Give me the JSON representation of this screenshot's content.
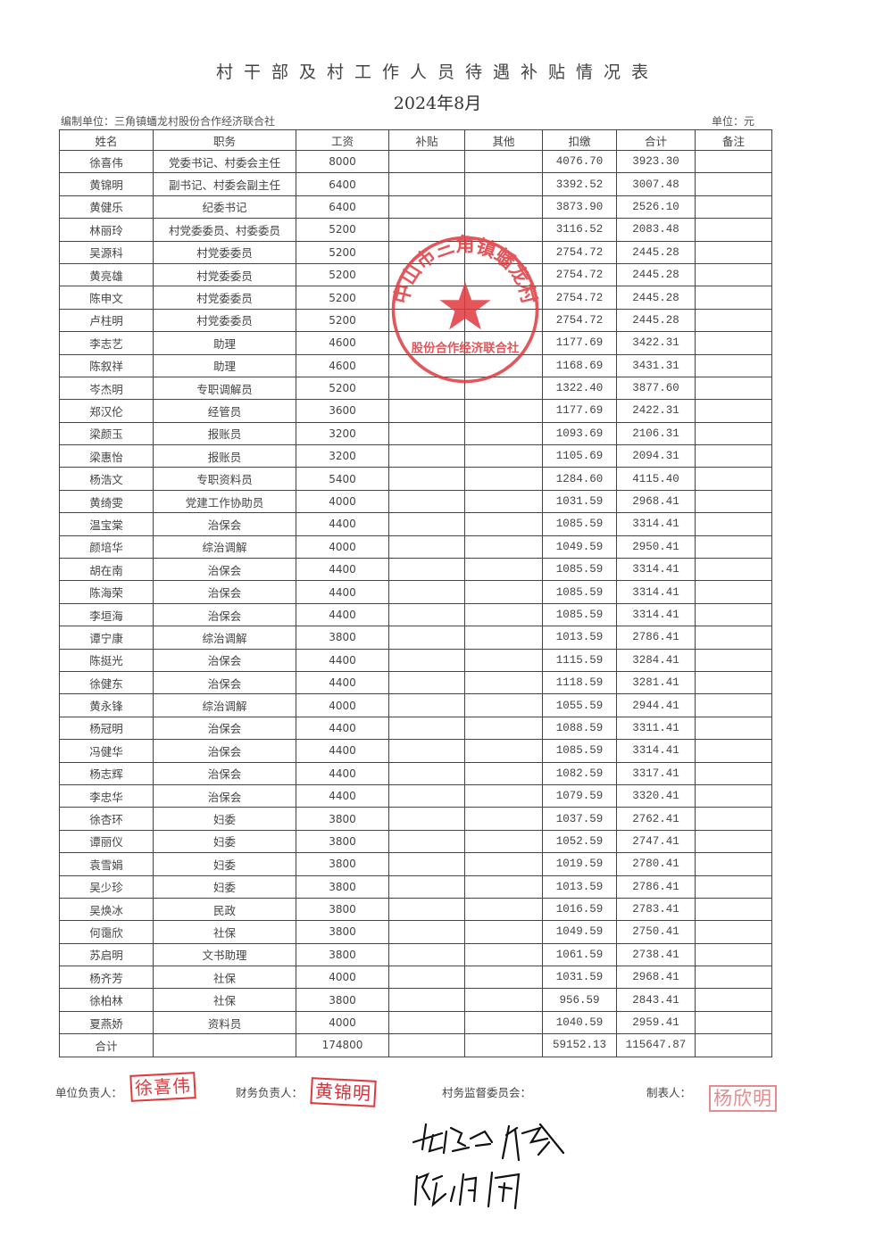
{
  "header": {
    "title": "村干部及村工作人员待遇补贴情况表",
    "period": "2024年8月",
    "org_label": "编制单位：三角镇蟠龙村股份合作经济联合社",
    "unit_label": "单位：元"
  },
  "table": {
    "columns": [
      "姓名",
      "职务",
      "工资",
      "补贴",
      "其他",
      "扣缴",
      "合计",
      "备注"
    ],
    "rows": [
      [
        "徐喜伟",
        "党委书记、村委会主任",
        "8000",
        "",
        "",
        "4076.70",
        "3923.30",
        ""
      ],
      [
        "黄锦明",
        "副书记、村委会副主任",
        "6400",
        "",
        "",
        "3392.52",
        "3007.48",
        ""
      ],
      [
        "黄健乐",
        "纪委书记",
        "6400",
        "",
        "",
        "3873.90",
        "2526.10",
        ""
      ],
      [
        "林丽玲",
        "村党委委员、村委委员",
        "5200",
        "",
        "",
        "3116.52",
        "2083.48",
        ""
      ],
      [
        "吴源科",
        "村党委委员",
        "5200",
        "",
        "",
        "2754.72",
        "2445.28",
        ""
      ],
      [
        "黄亮雄",
        "村党委委员",
        "5200",
        "",
        "",
        "2754.72",
        "2445.28",
        ""
      ],
      [
        "陈申文",
        "村党委委员",
        "5200",
        "",
        "",
        "2754.72",
        "2445.28",
        ""
      ],
      [
        "卢柱明",
        "村党委委员",
        "5200",
        "",
        "",
        "2754.72",
        "2445.28",
        ""
      ],
      [
        "李志艺",
        "助理",
        "4600",
        "",
        "",
        "1177.69",
        "3422.31",
        ""
      ],
      [
        "陈叙祥",
        "助理",
        "4600",
        "",
        "",
        "1168.69",
        "3431.31",
        ""
      ],
      [
        "岑杰明",
        "专职调解员",
        "5200",
        "",
        "",
        "1322.40",
        "3877.60",
        ""
      ],
      [
        "郑汉伦",
        "经管员",
        "3600",
        "",
        "",
        "1177.69",
        "2422.31",
        ""
      ],
      [
        "梁颜玉",
        "报账员",
        "3200",
        "",
        "",
        "1093.69",
        "2106.31",
        ""
      ],
      [
        "梁惠怡",
        "报账员",
        "3200",
        "",
        "",
        "1105.69",
        "2094.31",
        ""
      ],
      [
        "杨浩文",
        "专职资料员",
        "5400",
        "",
        "",
        "1284.60",
        "4115.40",
        ""
      ],
      [
        "黄绮雯",
        "党建工作协助员",
        "4000",
        "",
        "",
        "1031.59",
        "2968.41",
        ""
      ],
      [
        "温宝棠",
        "治保会",
        "4400",
        "",
        "",
        "1085.59",
        "3314.41",
        ""
      ],
      [
        "颜培华",
        "综治调解",
        "4000",
        "",
        "",
        "1049.59",
        "2950.41",
        ""
      ],
      [
        "胡在南",
        "治保会",
        "4400",
        "",
        "",
        "1085.59",
        "3314.41",
        ""
      ],
      [
        "陈海荣",
        "治保会",
        "4400",
        "",
        "",
        "1085.59",
        "3314.41",
        ""
      ],
      [
        "李垣海",
        "治保会",
        "4400",
        "",
        "",
        "1085.59",
        "3314.41",
        ""
      ],
      [
        "谭宁康",
        "综治调解",
        "3800",
        "",
        "",
        "1013.59",
        "2786.41",
        ""
      ],
      [
        "陈挺光",
        "治保会",
        "4400",
        "",
        "",
        "1115.59",
        "3284.41",
        ""
      ],
      [
        "徐健东",
        "治保会",
        "4400",
        "",
        "",
        "1118.59",
        "3281.41",
        ""
      ],
      [
        "黄永锋",
        "综治调解",
        "4000",
        "",
        "",
        "1055.59",
        "2944.41",
        ""
      ],
      [
        "杨冠明",
        "治保会",
        "4400",
        "",
        "",
        "1088.59",
        "3311.41",
        ""
      ],
      [
        "冯健华",
        "治保会",
        "4400",
        "",
        "",
        "1085.59",
        "3314.41",
        ""
      ],
      [
        "杨志辉",
        "治保会",
        "4400",
        "",
        "",
        "1082.59",
        "3317.41",
        ""
      ],
      [
        "李忠华",
        "治保会",
        "4400",
        "",
        "",
        "1079.59",
        "3320.41",
        ""
      ],
      [
        "徐杏环",
        "妇委",
        "3800",
        "",
        "",
        "1037.59",
        "2762.41",
        ""
      ],
      [
        "谭丽仪",
        "妇委",
        "3800",
        "",
        "",
        "1052.59",
        "2747.41",
        ""
      ],
      [
        "袁雪娟",
        "妇委",
        "3800",
        "",
        "",
        "1019.59",
        "2780.41",
        ""
      ],
      [
        "吴少珍",
        "妇委",
        "3800",
        "",
        "",
        "1013.59",
        "2786.41",
        ""
      ],
      [
        "吴焕冰",
        "民政",
        "3800",
        "",
        "",
        "1016.59",
        "2783.41",
        ""
      ],
      [
        "何霭欣",
        "社保",
        "3800",
        "",
        "",
        "1049.59",
        "2750.41",
        ""
      ],
      [
        "苏启明",
        "文书助理",
        "3800",
        "",
        "",
        "1061.59",
        "2738.41",
        ""
      ],
      [
        "杨齐芳",
        "社保",
        "4000",
        "",
        "",
        "1031.59",
        "2968.41",
        ""
      ],
      [
        "徐柏林",
        "社保",
        "3800",
        "",
        "",
        "956.59",
        "2843.41",
        ""
      ],
      [
        "夏燕娇",
        "资料员",
        "4000",
        "",
        "",
        "1040.59",
        "2959.41",
        ""
      ]
    ],
    "total": [
      "合计",
      "",
      "174800",
      "",
      "",
      "59152.13",
      "115647.87",
      ""
    ]
  },
  "footer": {
    "unit_head_label": "单位负责人：",
    "unit_head_seal": "徐喜伟",
    "finance_head_label": "财务负责人：",
    "finance_head_seal": "黄锦明",
    "supervision_label": "村务监督委员会：",
    "preparer_label": "制表人：",
    "preparer_seal": "杨欣明"
  },
  "stamp": {
    "outer_text": "中山市三角镇蟠龙村",
    "inner_text": "股份合作经济联合社",
    "color": "#e0393e"
  }
}
